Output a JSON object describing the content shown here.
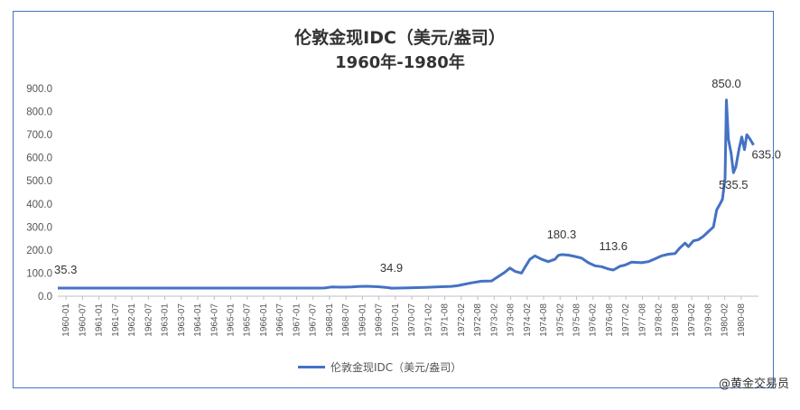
{
  "chart_data": {
    "type": "line",
    "title_line1": "伦敦金现IDC（美元/盎司）",
    "title_line2": "1960年-1980年",
    "legend": "伦敦金现IDC（美元/盎司）",
    "legend_position": "bottom",
    "grid": false,
    "ylim": [
      0,
      900
    ],
    "yticks": [
      "0.0",
      "100.0",
      "200.0",
      "300.0",
      "400.0",
      "500.0",
      "600.0",
      "700.0",
      "800.0",
      "900.0"
    ],
    "xticks": [
      "1960-01",
      "1960-07",
      "1961-01",
      "1961-07",
      "1962-01",
      "1962-07",
      "1963-01",
      "1963-07",
      "1964-01",
      "1964-07",
      "1965-01",
      "1965-07",
      "1966-01",
      "1966-07",
      "1967-01",
      "1967-07",
      "1968-01",
      "1968-07",
      "1969-01",
      "1969-07",
      "1970-01",
      "1970-07",
      "1971-02",
      "1971-08",
      "1972-02",
      "1972-08",
      "1973-02",
      "1973-08",
      "1974-02",
      "1974-08",
      "1975-02",
      "1975-08",
      "1976-02",
      "1976-08",
      "1977-02",
      "1977-08",
      "1978-02",
      "1978-08",
      "1979-02",
      "1979-08",
      "1980-02",
      "1980-08"
    ],
    "series": [
      {
        "name": "伦敦金现IDC（美元/盎司）",
        "color": "#4472c4",
        "points": [
          [
            1960.0,
            35.3
          ],
          [
            1961.0,
            35.3
          ],
          [
            1962.0,
            35.3
          ],
          [
            1963.0,
            35.2
          ],
          [
            1964.0,
            35.2
          ],
          [
            1965.0,
            35.2
          ],
          [
            1966.0,
            35.2
          ],
          [
            1967.0,
            35.2
          ],
          [
            1967.8,
            35.3
          ],
          [
            1968.0,
            35.5
          ],
          [
            1968.2,
            40.0
          ],
          [
            1968.5,
            39.0
          ],
          [
            1968.8,
            40.0
          ],
          [
            1969.0,
            42.0
          ],
          [
            1969.25,
            43.0
          ],
          [
            1969.6,
            41.0
          ],
          [
            1969.9,
            37.0
          ],
          [
            1970.0,
            34.9
          ],
          [
            1970.5,
            36.0
          ],
          [
            1971.0,
            38.0
          ],
          [
            1971.5,
            41.0
          ],
          [
            1971.8,
            42.5
          ],
          [
            1972.0,
            46.0
          ],
          [
            1972.4,
            58.0
          ],
          [
            1972.7,
            65.0
          ],
          [
            1973.0,
            66.0
          ],
          [
            1973.2,
            85.0
          ],
          [
            1973.4,
            104.0
          ],
          [
            1973.55,
            122.0
          ],
          [
            1973.7,
            108.0
          ],
          [
            1973.9,
            100.0
          ],
          [
            1974.0,
            125.0
          ],
          [
            1974.15,
            160.0
          ],
          [
            1974.3,
            175.0
          ],
          [
            1974.5,
            160.0
          ],
          [
            1974.7,
            150.0
          ],
          [
            1974.9,
            160.0
          ],
          [
            1975.0,
            177.0
          ],
          [
            1975.1,
            180.3
          ],
          [
            1975.3,
            178.0
          ],
          [
            1975.5,
            172.0
          ],
          [
            1975.7,
            165.0
          ],
          [
            1975.9,
            145.0
          ],
          [
            1976.1,
            132.0
          ],
          [
            1976.3,
            128.0
          ],
          [
            1976.5,
            118.0
          ],
          [
            1976.65,
            113.6
          ],
          [
            1976.85,
            130.0
          ],
          [
            1977.0,
            135.0
          ],
          [
            1977.2,
            148.0
          ],
          [
            1977.5,
            145.0
          ],
          [
            1977.7,
            150.0
          ],
          [
            1977.9,
            162.0
          ],
          [
            1978.1,
            175.0
          ],
          [
            1978.3,
            182.0
          ],
          [
            1978.5,
            185.0
          ],
          [
            1978.65,
            210.0
          ],
          [
            1978.8,
            230.0
          ],
          [
            1978.9,
            215.0
          ],
          [
            1979.05,
            240.0
          ],
          [
            1979.2,
            245.0
          ],
          [
            1979.35,
            260.0
          ],
          [
            1979.5,
            280.0
          ],
          [
            1979.65,
            300.0
          ],
          [
            1979.75,
            375.0
          ],
          [
            1979.85,
            400.0
          ],
          [
            1979.92,
            420.0
          ],
          [
            1980.0,
            510.0
          ],
          [
            1980.04,
            850.0
          ],
          [
            1980.1,
            680.0
          ],
          [
            1980.18,
            620.0
          ],
          [
            1980.25,
            535.5
          ],
          [
            1980.32,
            560.0
          ],
          [
            1980.42,
            640.0
          ],
          [
            1980.5,
            690.0
          ],
          [
            1980.58,
            635.0
          ],
          [
            1980.65,
            700.0
          ],
          [
            1980.75,
            680.0
          ],
          [
            1980.85,
            655.0
          ]
        ]
      }
    ],
    "annotations": [
      {
        "text": "35.3",
        "x": 1960.0,
        "y": 35.3
      },
      {
        "text": "34.9",
        "x": 1970.0,
        "y": 34.9
      },
      {
        "text": "180.3",
        "x": 1975.1,
        "y": 180.3
      },
      {
        "text": "113.6",
        "x": 1976.65,
        "y": 113.6
      },
      {
        "text": "850.0",
        "x": 1980.04,
        "y": 850.0
      },
      {
        "text": "535.5",
        "x": 1980.25,
        "y": 535.5
      },
      {
        "text": "635.0",
        "x": 1980.58,
        "y": 635.0
      }
    ]
  },
  "watermark": "@黄金交易员"
}
